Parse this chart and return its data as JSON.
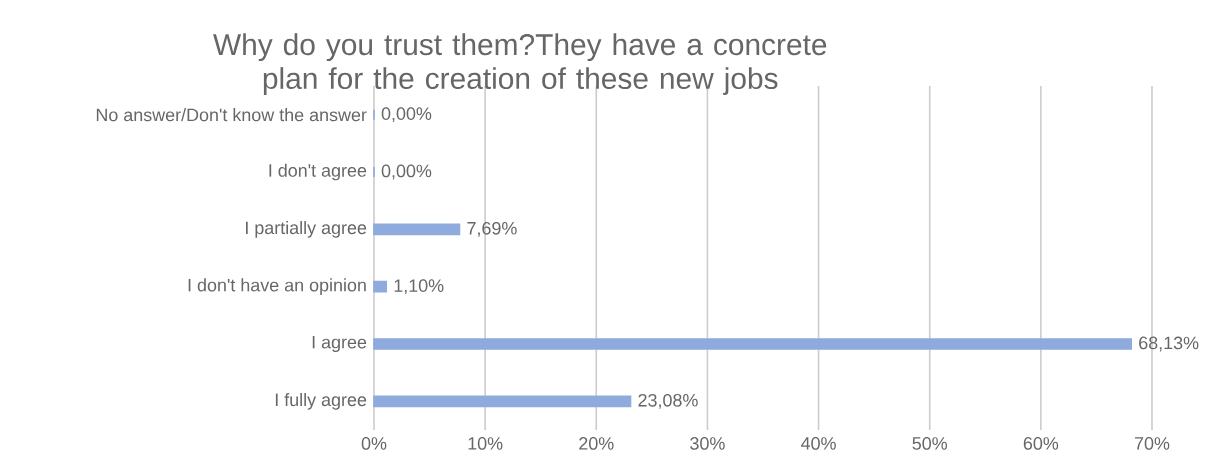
{
  "chart_data": {
    "type": "bar",
    "orientation": "horizontal",
    "title": "Why do you trust them?They have a concrete plan for the creation of these new jobs",
    "categories": [
      "No answer/Don't know the answer",
      "I don't agree",
      "I partially agree",
      "I don't have an opinion",
      "I agree",
      "I fully agree"
    ],
    "values": [
      0,
      0,
      7.69,
      1.1,
      68.13,
      23.08
    ],
    "value_labels": [
      "0,00%",
      "0,00%",
      "7,69%",
      "1,10%",
      "68,13%",
      "23,08%"
    ],
    "color": "#8faadc",
    "xlim": [
      0,
      70
    ],
    "xticks": [
      {
        "value": 0,
        "label": "0%"
      },
      {
        "value": 10,
        "label": "10%"
      },
      {
        "value": 20,
        "label": "20%"
      },
      {
        "value": 30,
        "label": "30%"
      },
      {
        "value": 40,
        "label": "40%"
      },
      {
        "value": 50,
        "label": "50%"
      },
      {
        "value": 60,
        "label": "60%"
      },
      {
        "value": 70,
        "label": "70%"
      }
    ],
    "grid": "x"
  }
}
